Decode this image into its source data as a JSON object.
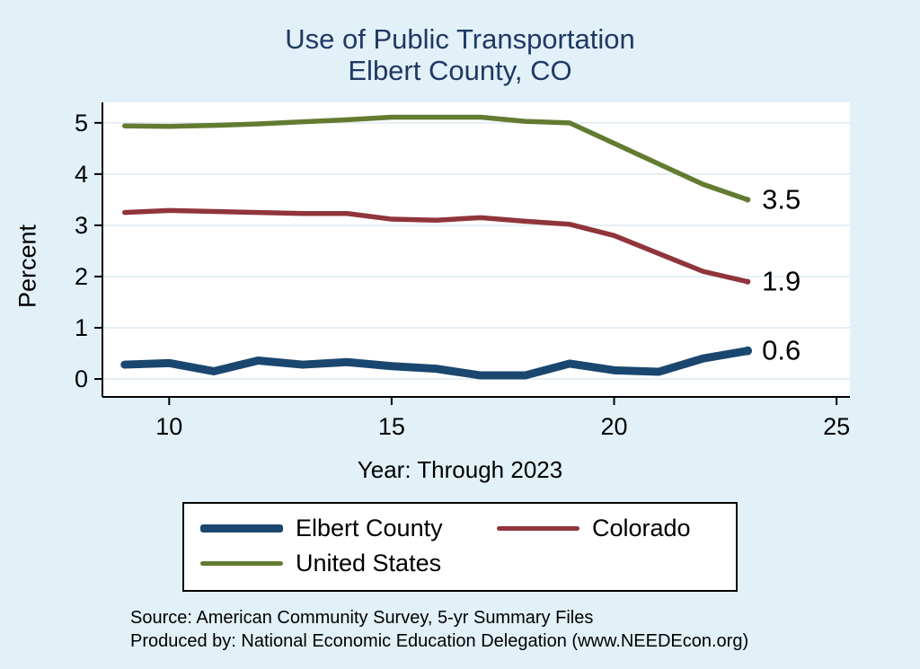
{
  "chart_data": {
    "type": "line",
    "title": "Use of Public Transportation",
    "subtitle": "Elbert County, CO",
    "xlabel": "Year: Through 2023",
    "ylabel": "Percent",
    "x": [
      9,
      10,
      11,
      12,
      13,
      14,
      15,
      16,
      17,
      18,
      19,
      20,
      21,
      22,
      23
    ],
    "series": [
      {
        "name": "Elbert County",
        "color": "#1a476f",
        "width": 9,
        "end_label": "0.6",
        "values": [
          0.28,
          0.31,
          0.15,
          0.36,
          0.28,
          0.33,
          0.25,
          0.2,
          0.07,
          0.07,
          0.3,
          0.17,
          0.14,
          0.4,
          0.55
        ]
      },
      {
        "name": "Colorado",
        "color": "#90353b",
        "width": 5.5,
        "end_label": "1.9",
        "values": [
          3.25,
          3.29,
          3.27,
          3.25,
          3.23,
          3.23,
          3.12,
          3.1,
          3.15,
          3.08,
          3.02,
          2.8,
          2.45,
          2.1,
          1.9
        ]
      },
      {
        "name": "United States",
        "color": "#637b31",
        "width": 5.5,
        "end_label": "3.5",
        "values": [
          4.94,
          4.93,
          4.95,
          4.98,
          5.02,
          5.06,
          5.11,
          5.11,
          5.11,
          5.03,
          5.0,
          4.6,
          4.2,
          3.8,
          3.5
        ]
      }
    ],
    "xticks": [
      10,
      15,
      20,
      25
    ],
    "yticks": [
      0,
      1,
      2,
      3,
      4,
      5
    ],
    "xlim": [
      8.5,
      25.3
    ],
    "ylim": [
      -0.35,
      5.4
    ],
    "grid": true,
    "legend_position": "bottom"
  },
  "legend_rows": [
    [
      "Elbert County",
      "Colorado"
    ],
    [
      "United States"
    ]
  ],
  "footer": {
    "source": "Source: American Community Survey, 5-yr Summary Files",
    "produced_by": "Produced by: National Economic Education Delegation (www.NEEDEcon.org)"
  },
  "colors": {
    "background": "#e2f1f8",
    "title_text": "#1f3864",
    "grid_line": "#dce8f0",
    "axis": "#000000",
    "plot_background": "#ffffff"
  }
}
